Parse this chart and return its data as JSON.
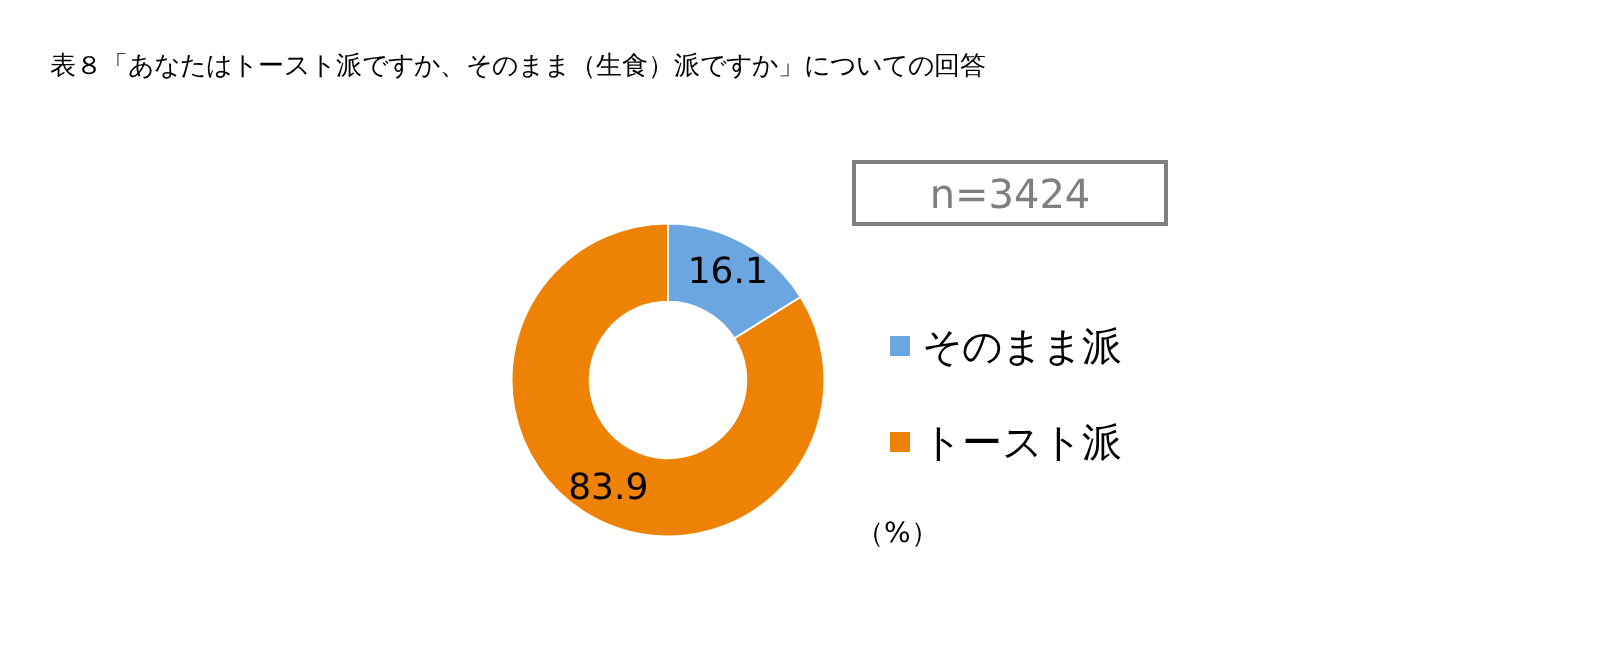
{
  "chart_data": {
    "type": "donut",
    "title": "表８「あなたはトースト派ですか、そのまま（生食）派ですか」についての回答",
    "categories": [
      "そのまま派",
      "トースト派"
    ],
    "values": [
      16.1,
      83.9
    ],
    "colors": [
      "#6ca6e0",
      "#ee8205"
    ],
    "data_labels": true,
    "legend": "right",
    "annotations": [
      "n=3424",
      "（%）"
    ]
  }
}
